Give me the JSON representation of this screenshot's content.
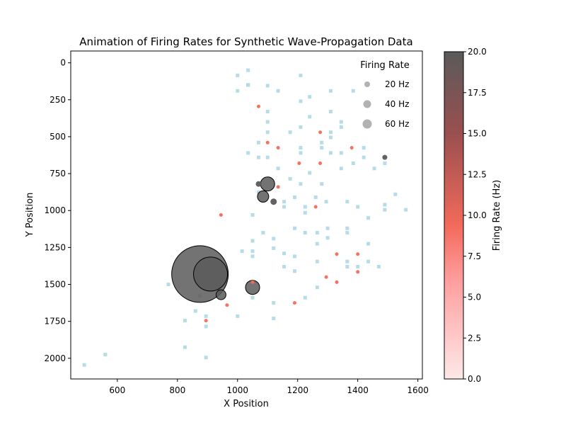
{
  "chart_data": {
    "type": "scatter",
    "title": "Animation of Firing Rates for Synthetic Wave-Propagation Data",
    "xlabel": "X Position",
    "ylabel": "Y Position",
    "xlim": [
      445,
      1615
    ],
    "ylim": [
      2140,
      -80
    ],
    "y_inverted": true,
    "xticks": [
      600,
      800,
      1000,
      1200,
      1400,
      1600
    ],
    "yticks": [
      0,
      250,
      500,
      750,
      1000,
      1250,
      1500,
      1750,
      2000
    ],
    "grid": false,
    "legend": {
      "title": "Firing Rate",
      "placement": "top-right",
      "entries": [
        {
          "label": "20 Hz",
          "value": 20
        },
        {
          "label": "40 Hz",
          "value": 40
        },
        {
          "label": "60 Hz",
          "value": 60
        }
      ]
    },
    "colorbar": {
      "label": "Firing Rate (Hz)",
      "range": [
        0,
        20
      ],
      "ticks": [
        "0.0",
        "2.5",
        "5.0",
        "7.5",
        "10.0",
        "12.5",
        "15.0",
        "17.5",
        "20.0"
      ],
      "colors": [
        "#fde8e8",
        "#ff9e9e",
        "#f26a5a",
        "#9a4f4f",
        "#5a5a5a"
      ]
    },
    "inactive_color": "#add8e6",
    "inactive_points": [
      [
        1000,
        85
      ],
      [
        1035,
        50
      ],
      [
        1035,
        150
      ],
      [
        1100,
        155
      ],
      [
        1210,
        85
      ],
      [
        1000,
        190
      ],
      [
        1035,
        150
      ],
      [
        1135,
        190
      ],
      [
        1240,
        230
      ],
      [
        1210,
        260
      ],
      [
        1310,
        190
      ],
      [
        1385,
        190
      ],
      [
        1100,
        330
      ],
      [
        1100,
        400
      ],
      [
        1310,
        330
      ],
      [
        1240,
        365
      ],
      [
        1210,
        435
      ],
      [
        1100,
        470
      ],
      [
        1175,
        470
      ],
      [
        1345,
        400
      ],
      [
        1345,
        435
      ],
      [
        1310,
        470
      ],
      [
        1310,
        505
      ],
      [
        1070,
        540
      ],
      [
        1280,
        540
      ],
      [
        1035,
        610
      ],
      [
        1070,
        640
      ],
      [
        1100,
        640
      ],
      [
        1210,
        575
      ],
      [
        1210,
        610
      ],
      [
        1280,
        575
      ],
      [
        1310,
        610
      ],
      [
        1345,
        610
      ],
      [
        1420,
        575
      ],
      [
        1420,
        640
      ],
      [
        1385,
        680
      ],
      [
        1135,
        715
      ],
      [
        1240,
        745
      ],
      [
        1210,
        820
      ],
      [
        1280,
        820
      ],
      [
        1345,
        715
      ],
      [
        1455,
        715
      ],
      [
        1490,
        680
      ],
      [
        1175,
        785
      ],
      [
        1070,
        875
      ],
      [
        1155,
        940
      ],
      [
        1155,
        975
      ],
      [
        1190,
        910
      ],
      [
        1225,
        975
      ],
      [
        1225,
        1015
      ],
      [
        1260,
        910
      ],
      [
        1295,
        940
      ],
      [
        1365,
        940
      ],
      [
        1400,
        975
      ],
      [
        1490,
        960
      ],
      [
        1490,
        995
      ],
      [
        1525,
        890
      ],
      [
        1560,
        995
      ],
      [
        1050,
        1030
      ],
      [
        1085,
        1150
      ],
      [
        1190,
        1120
      ],
      [
        1225,
        1150
      ],
      [
        1265,
        1150
      ],
      [
        1300,
        1120
      ],
      [
        1300,
        1185
      ],
      [
        1365,
        1120
      ],
      [
        1365,
        1150
      ],
      [
        1435,
        1050
      ],
      [
        1435,
        1225
      ],
      [
        1050,
        1205
      ],
      [
        1120,
        1190
      ],
      [
        1015,
        1275
      ],
      [
        1050,
        1275
      ],
      [
        1050,
        1310
      ],
      [
        1120,
        1255
      ],
      [
        1155,
        1290
      ],
      [
        1190,
        1310
      ],
      [
        1265,
        1225
      ],
      [
        1265,
        1345
      ],
      [
        1365,
        1345
      ],
      [
        1365,
        1380
      ],
      [
        1400,
        1380
      ],
      [
        1435,
        1345
      ],
      [
        1470,
        1380
      ],
      [
        1155,
        1380
      ],
      [
        1190,
        1410
      ],
      [
        1225,
        1590
      ],
      [
        1265,
        1520
      ],
      [
        1120,
        1625
      ],
      [
        1120,
        1730
      ],
      [
        770,
        1500
      ],
      [
        875,
        1575
      ],
      [
        860,
        1680
      ],
      [
        895,
        1715
      ],
      [
        895,
        1785
      ],
      [
        825,
        1745
      ],
      [
        825,
        1925
      ],
      [
        895,
        1995
      ],
      [
        1000,
        1715
      ],
      [
        490,
        2045
      ],
      [
        560,
        1975
      ],
      [
        1050,
        1590
      ],
      [
        945,
        1430
      ],
      [
        910,
        1430
      ],
      [
        875,
        1430
      ]
    ],
    "active_points": [
      {
        "x": 1070,
        "y": 295,
        "rate": 10,
        "size": 5
      },
      {
        "x": 1100,
        "y": 540,
        "rate": 10,
        "size": 5
      },
      {
        "x": 1135,
        "y": 575,
        "rate": 10,
        "size": 5
      },
      {
        "x": 1205,
        "y": 680,
        "rate": 10,
        "size": 5
      },
      {
        "x": 1275,
        "y": 470,
        "rate": 10,
        "size": 5
      },
      {
        "x": 1275,
        "y": 680,
        "rate": 10,
        "size": 5
      },
      {
        "x": 1380,
        "y": 575,
        "rate": 10,
        "size": 5
      },
      {
        "x": 1490,
        "y": 640,
        "rate": 20,
        "size": 7
      },
      {
        "x": 1135,
        "y": 840,
        "rate": 10,
        "size": 5
      },
      {
        "x": 1070,
        "y": 820,
        "rate": 20,
        "size": 8
      },
      {
        "x": 1100,
        "y": 820,
        "rate": 20,
        "size": 20
      },
      {
        "x": 1085,
        "y": 905,
        "rate": 20,
        "size": 16
      },
      {
        "x": 1120,
        "y": 940,
        "rate": 20,
        "size": 9
      },
      {
        "x": 1260,
        "y": 975,
        "rate": 10,
        "size": 5
      },
      {
        "x": 945,
        "y": 1030,
        "rate": 10,
        "size": 5
      },
      {
        "x": 1330,
        "y": 1295,
        "rate": 10,
        "size": 5
      },
      {
        "x": 1400,
        "y": 1295,
        "rate": 10,
        "size": 5
      },
      {
        "x": 1295,
        "y": 1450,
        "rate": 10,
        "size": 5
      },
      {
        "x": 1330,
        "y": 1485,
        "rate": 10,
        "size": 5
      },
      {
        "x": 1400,
        "y": 1415,
        "rate": 10,
        "size": 5
      },
      {
        "x": 1050,
        "y": 1485,
        "rate": 10,
        "size": 5
      },
      {
        "x": 1190,
        "y": 1625,
        "rate": 10,
        "size": 5
      },
      {
        "x": 965,
        "y": 1640,
        "rate": 10,
        "size": 5
      },
      {
        "x": 895,
        "y": 1745,
        "rate": 10,
        "size": 5
      },
      {
        "x": 945,
        "y": 1570,
        "rate": 20,
        "size": 14
      },
      {
        "x": 1050,
        "y": 1520,
        "rate": 20,
        "size": 20
      },
      {
        "x": 875,
        "y": 1430,
        "rate": 20,
        "size": 80
      },
      {
        "x": 910,
        "y": 1430,
        "rate": 20,
        "size": 48
      }
    ]
  }
}
